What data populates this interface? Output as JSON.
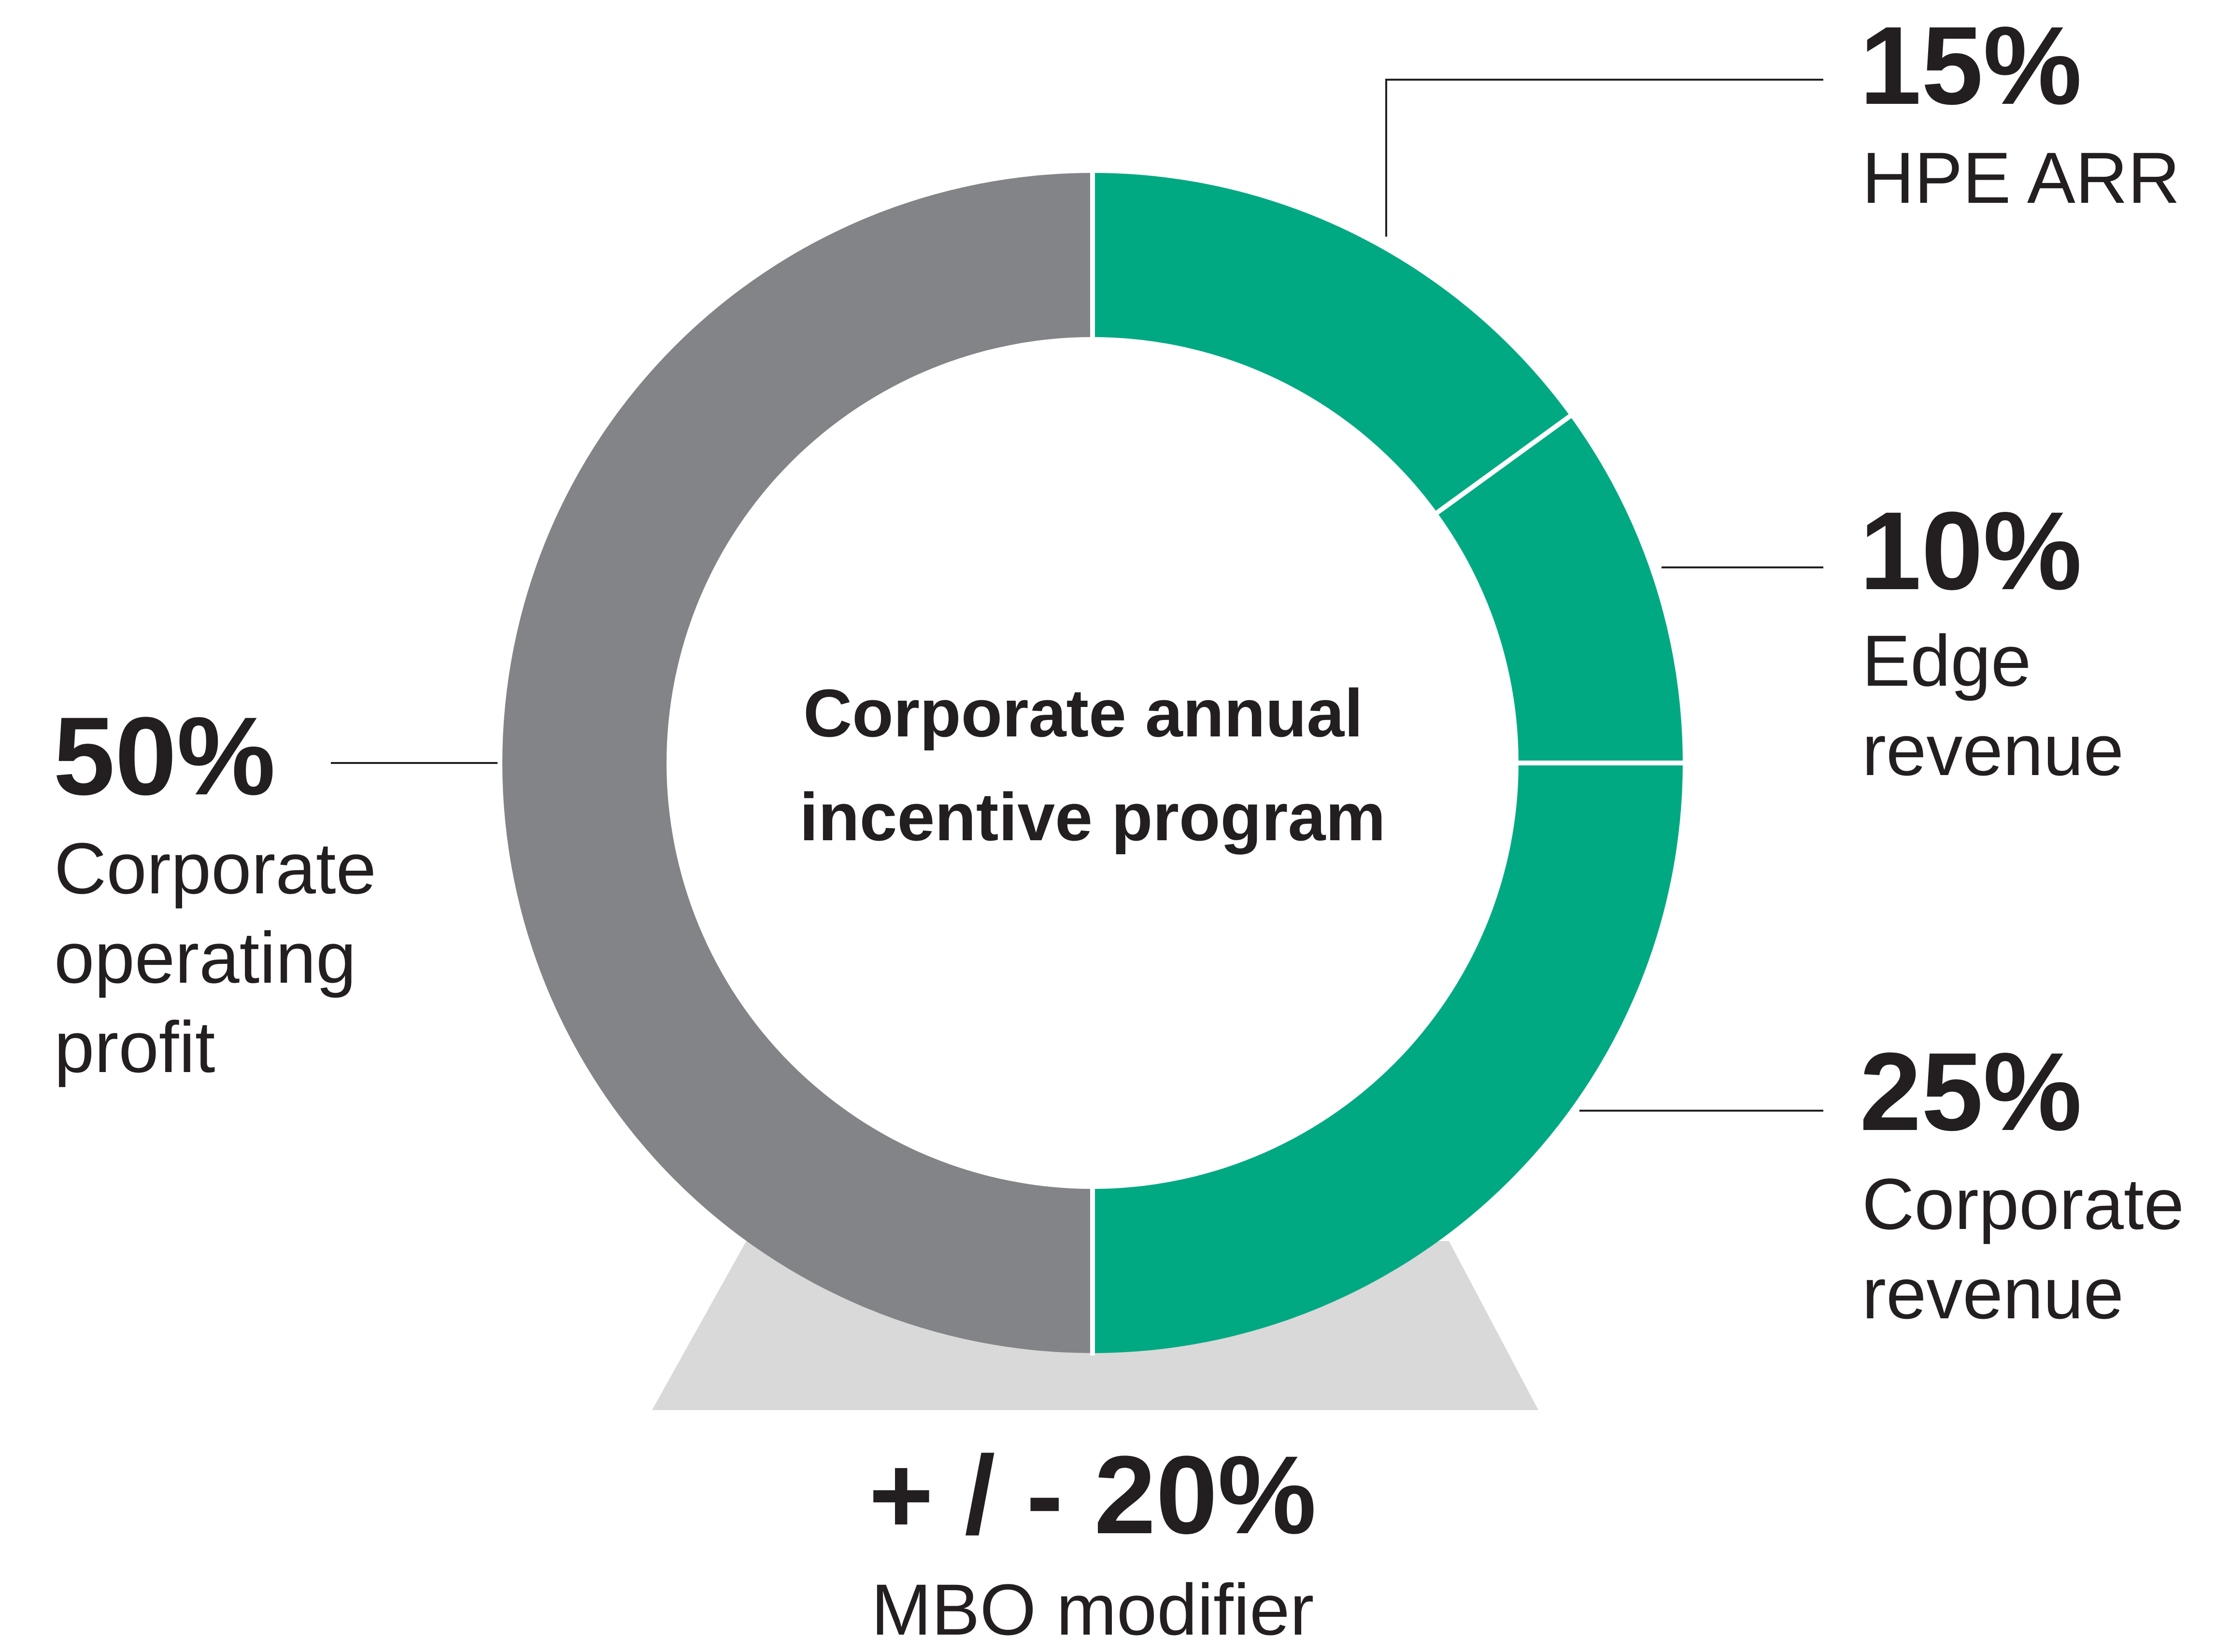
{
  "chart_data": {
    "type": "pie",
    "center_title": [
      "Corporate annual",
      "incentive program"
    ],
    "slices": [
      {
        "pct": "15%",
        "label": [
          "HPE ARR"
        ],
        "value": 15,
        "color": "#01a982"
      },
      {
        "pct": "10%",
        "label": [
          "Edge",
          "revenue"
        ],
        "value": 10,
        "color": "#01a982"
      },
      {
        "pct": "25%",
        "label": [
          "Corporate",
          "revenue"
        ],
        "value": 25,
        "color": "#01a982"
      },
      {
        "pct": "50%",
        "label": [
          "Corporate",
          "operating",
          "profit"
        ],
        "value": 50,
        "color": "#838487"
      }
    ],
    "modifier": {
      "pct": "+ / - 20%",
      "label": "MBO modifier",
      "color": "#d9d9d9"
    },
    "colors": {
      "text": "#231f20",
      "separator": "#ffffff",
      "leader": "#231f20"
    }
  }
}
